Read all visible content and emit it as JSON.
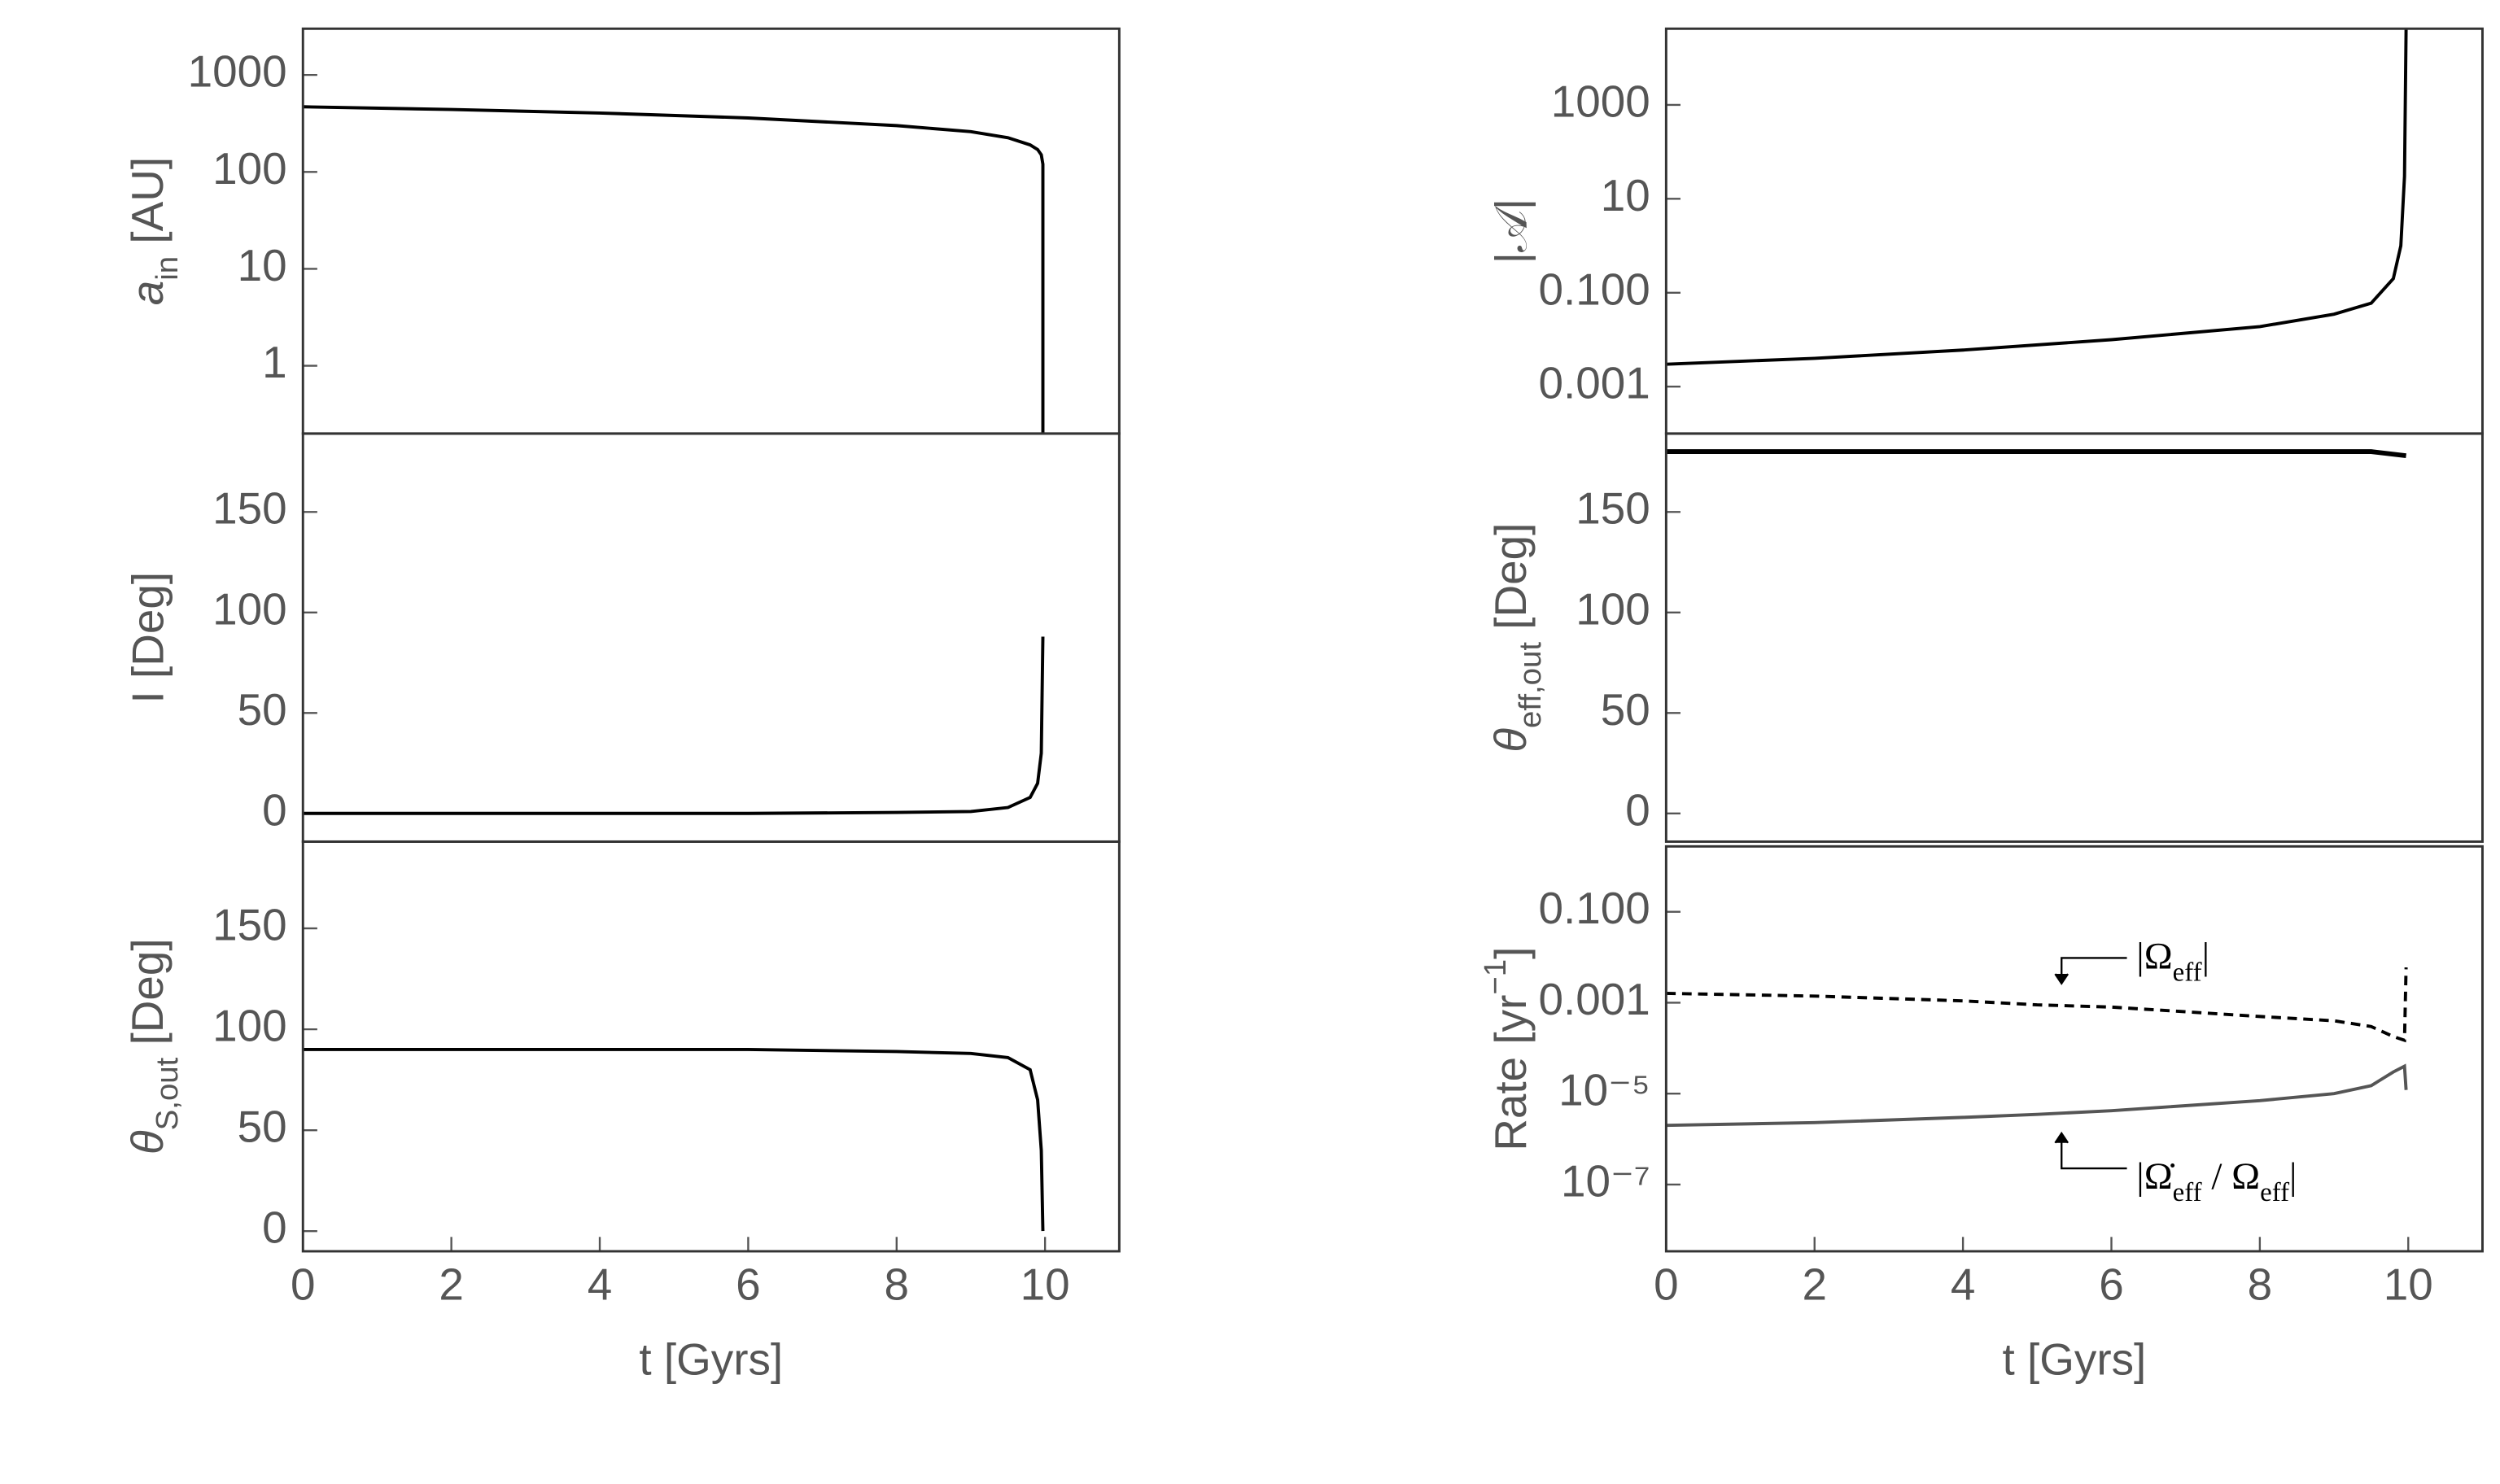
{
  "chart_data": [
    {
      "type": "line",
      "ylabel": [
        {
          "text": "a",
          "italic": true
        },
        {
          "text": "in",
          "sub": true
        },
        {
          "text": " [AU]"
        }
      ],
      "log": true,
      "xlim": [
        0,
        11
      ],
      "ylim": [
        0.2,
        3000
      ],
      "yticks": [
        1,
        10,
        100,
        1000
      ],
      "x": [
        0,
        2,
        4,
        6,
        8,
        9,
        9.5,
        9.8,
        9.9,
        9.95,
        9.97,
        9.97
      ],
      "series": [
        {
          "color": "#000000",
          "values": [
            470,
            440,
            405,
            360,
            300,
            260,
            225,
            190,
            170,
            150,
            120,
            0.2
          ]
        }
      ]
    },
    {
      "type": "line",
      "ylabel": "I [Deg]",
      "xlim": [
        0,
        11
      ],
      "ylim": [
        -14,
        189
      ],
      "yticks": [
        0,
        50,
        100,
        150
      ],
      "x": [
        0,
        2,
        4,
        6,
        8,
        9,
        9.5,
        9.8,
        9.9,
        9.95,
        9.97
      ],
      "series": [
        {
          "color": "#000000",
          "values": [
            0,
            0,
            0,
            0,
            0.5,
            1,
            3,
            8,
            15,
            30,
            88
          ]
        }
      ]
    },
    {
      "type": "line",
      "ylabel": [
        {
          "text": "θ",
          "italic": true
        },
        {
          "text": "S,out",
          "sub": true
        },
        {
          "text": " [Deg]"
        }
      ],
      "xlim": [
        0,
        11
      ],
      "ylim": [
        -10,
        193
      ],
      "yticks": [
        0,
        50,
        100,
        150
      ],
      "xticks": [
        0,
        2,
        4,
        6,
        8,
        10
      ],
      "xlabel": "t [Gyrs]",
      "x": [
        0,
        2,
        4,
        6,
        8,
        9,
        9.5,
        9.8,
        9.9,
        9.95,
        9.97
      ],
      "series": [
        {
          "color": "#000000",
          "values": [
            90,
            90,
            90,
            90,
            89,
            88,
            86,
            80,
            65,
            40,
            0
          ]
        }
      ]
    },
    {
      "type": "line",
      "ylabel": "|𝒜|",
      "log": true,
      "xlim": [
        0,
        11
      ],
      "ylim": [
        0.0001,
        42000
      ],
      "yticks": [
        0.001,
        {
          "value": 0.1,
          "label": "0.100"
        },
        10,
        1000
      ],
      "x": [
        0,
        2,
        4,
        6,
        8,
        9,
        9.5,
        9.8,
        9.9,
        9.95,
        9.97
      ],
      "series": [
        {
          "color": "#000000",
          "values": [
            0.003,
            0.004,
            0.006,
            0.01,
            0.019,
            0.035,
            0.06,
            0.2,
            1,
            30,
            42000
          ]
        }
      ]
    },
    {
      "type": "line",
      "ylabel": [
        {
          "text": "θ",
          "italic": true
        },
        {
          "text": "eff,out",
          "sub": true
        },
        {
          "text": " [Deg]"
        }
      ],
      "xlim": [
        0,
        11
      ],
      "ylim": [
        -14,
        189
      ],
      "yticks": [
        0,
        50,
        100,
        150
      ],
      "x": [
        0,
        5,
        9.5,
        9.97
      ],
      "series": [
        {
          "color": "#000000",
          "values": [
            180,
            180,
            180,
            178
          ]
        }
      ]
    },
    {
      "type": "line",
      "ylabel": [
        {
          "text": "Rate [yr"
        },
        {
          "text": "−1",
          "sup": true
        },
        {
          "text": "]"
        }
      ],
      "log": true,
      "xlim": [
        0,
        11
      ],
      "ylim": [
        3.4e-09,
        2.75
      ],
      "yticks": [
        {
          "value": 0.1,
          "label": "0.100"
        },
        0.001,
        {
          "value": 1e-05,
          "label": "10⁻⁵"
        },
        {
          "value": 1e-07,
          "label": "10⁻⁷"
        }
      ],
      "xticks": [
        0,
        2,
        4,
        6,
        8,
        10
      ],
      "xlabel": "t [Gyrs]",
      "x": [
        0,
        2,
        4,
        5,
        6,
        8,
        9,
        9.5,
        9.8,
        9.95,
        9.97
      ],
      "series": [
        {
          "name": [
            {
              "text": "|Ω"
            },
            {
              "text": "eff",
              "sub": true
            },
            {
              "text": "|"
            }
          ],
          "color": "#000000",
          "dash": true,
          "values": [
            0.0016,
            0.0014,
            0.0011,
            0.0009,
            0.0008,
            0.0005,
            0.0004,
            0.0003,
            0.00018,
            0.00015,
            0.006
          ]
        },
        {
          "name": [
            {
              "text": "|Ω̇"
            },
            {
              "text": "eff",
              "sub": true
            },
            {
              "text": " / Ω"
            },
            {
              "text": "eff",
              "sub": true
            },
            {
              "text": "|"
            }
          ],
          "color": "#555555",
          "values": [
            2e-06,
            2.3e-06,
            3e-06,
            3.5e-06,
            4.2e-06,
            7e-06,
            1e-05,
            1.5e-05,
            3e-05,
            4e-05,
            1.2e-05
          ]
        }
      ]
    }
  ]
}
